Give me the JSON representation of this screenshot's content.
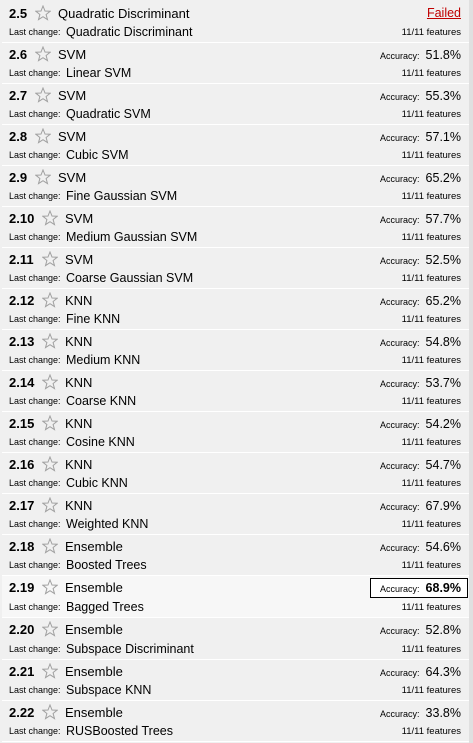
{
  "last_change_label": "Last change:",
  "accuracy_label": "Accuracy:",
  "models": [
    {
      "num": "2.5",
      "type": "Quadratic Discriminant",
      "last_change": "Quadratic Discriminant",
      "status": "Failed",
      "accuracy": null,
      "features": "11/11 features",
      "selected": false
    },
    {
      "num": "2.6",
      "type": "SVM",
      "last_change": "Linear SVM",
      "status": null,
      "accuracy": "51.8%",
      "features": "11/11 features",
      "selected": false
    },
    {
      "num": "2.7",
      "type": "SVM",
      "last_change": "Quadratic SVM",
      "status": null,
      "accuracy": "55.3%",
      "features": "11/11 features",
      "selected": false
    },
    {
      "num": "2.8",
      "type": "SVM",
      "last_change": "Cubic SVM",
      "status": null,
      "accuracy": "57.1%",
      "features": "11/11 features",
      "selected": false
    },
    {
      "num": "2.9",
      "type": "SVM",
      "last_change": "Fine Gaussian SVM",
      "status": null,
      "accuracy": "65.2%",
      "features": "11/11 features",
      "selected": false
    },
    {
      "num": "2.10",
      "type": "SVM",
      "last_change": "Medium Gaussian SVM",
      "status": null,
      "accuracy": "57.7%",
      "features": "11/11 features",
      "selected": false
    },
    {
      "num": "2.11",
      "type": "SVM",
      "last_change": "Coarse Gaussian SVM",
      "status": null,
      "accuracy": "52.5%",
      "features": "11/11 features",
      "selected": false
    },
    {
      "num": "2.12",
      "type": "KNN",
      "last_change": "Fine KNN",
      "status": null,
      "accuracy": "65.2%",
      "features": "11/11 features",
      "selected": false
    },
    {
      "num": "2.13",
      "type": "KNN",
      "last_change": "Medium KNN",
      "status": null,
      "accuracy": "54.8%",
      "features": "11/11 features",
      "selected": false
    },
    {
      "num": "2.14",
      "type": "KNN",
      "last_change": "Coarse KNN",
      "status": null,
      "accuracy": "53.7%",
      "features": "11/11 features",
      "selected": false
    },
    {
      "num": "2.15",
      "type": "KNN",
      "last_change": "Cosine KNN",
      "status": null,
      "accuracy": "54.2%",
      "features": "11/11 features",
      "selected": false
    },
    {
      "num": "2.16",
      "type": "KNN",
      "last_change": "Cubic KNN",
      "status": null,
      "accuracy": "54.7%",
      "features": "11/11 features",
      "selected": false
    },
    {
      "num": "2.17",
      "type": "KNN",
      "last_change": "Weighted KNN",
      "status": null,
      "accuracy": "67.9%",
      "features": "11/11 features",
      "selected": false
    },
    {
      "num": "2.18",
      "type": "Ensemble",
      "last_change": "Boosted Trees",
      "status": null,
      "accuracy": "54.6%",
      "features": "11/11 features",
      "selected": false
    },
    {
      "num": "2.19",
      "type": "Ensemble",
      "last_change": "Bagged Trees",
      "status": null,
      "accuracy": "68.9%",
      "features": "11/11 features",
      "selected": true
    },
    {
      "num": "2.20",
      "type": "Ensemble",
      "last_change": "Subspace Discriminant",
      "status": null,
      "accuracy": "52.8%",
      "features": "11/11 features",
      "selected": false
    },
    {
      "num": "2.21",
      "type": "Ensemble",
      "last_change": "Subspace KNN",
      "status": null,
      "accuracy": "64.3%",
      "features": "11/11 features",
      "selected": false
    },
    {
      "num": "2.22",
      "type": "Ensemble",
      "last_change": "RUSBoosted Trees",
      "status": null,
      "accuracy": "33.8%",
      "features": "11/11 features",
      "selected": false
    }
  ],
  "colors": {
    "failed": "#c00000",
    "row_bg": "#f0f0f0",
    "selected_border": "#000000"
  },
  "icons": {
    "star": "star-outline-icon"
  }
}
